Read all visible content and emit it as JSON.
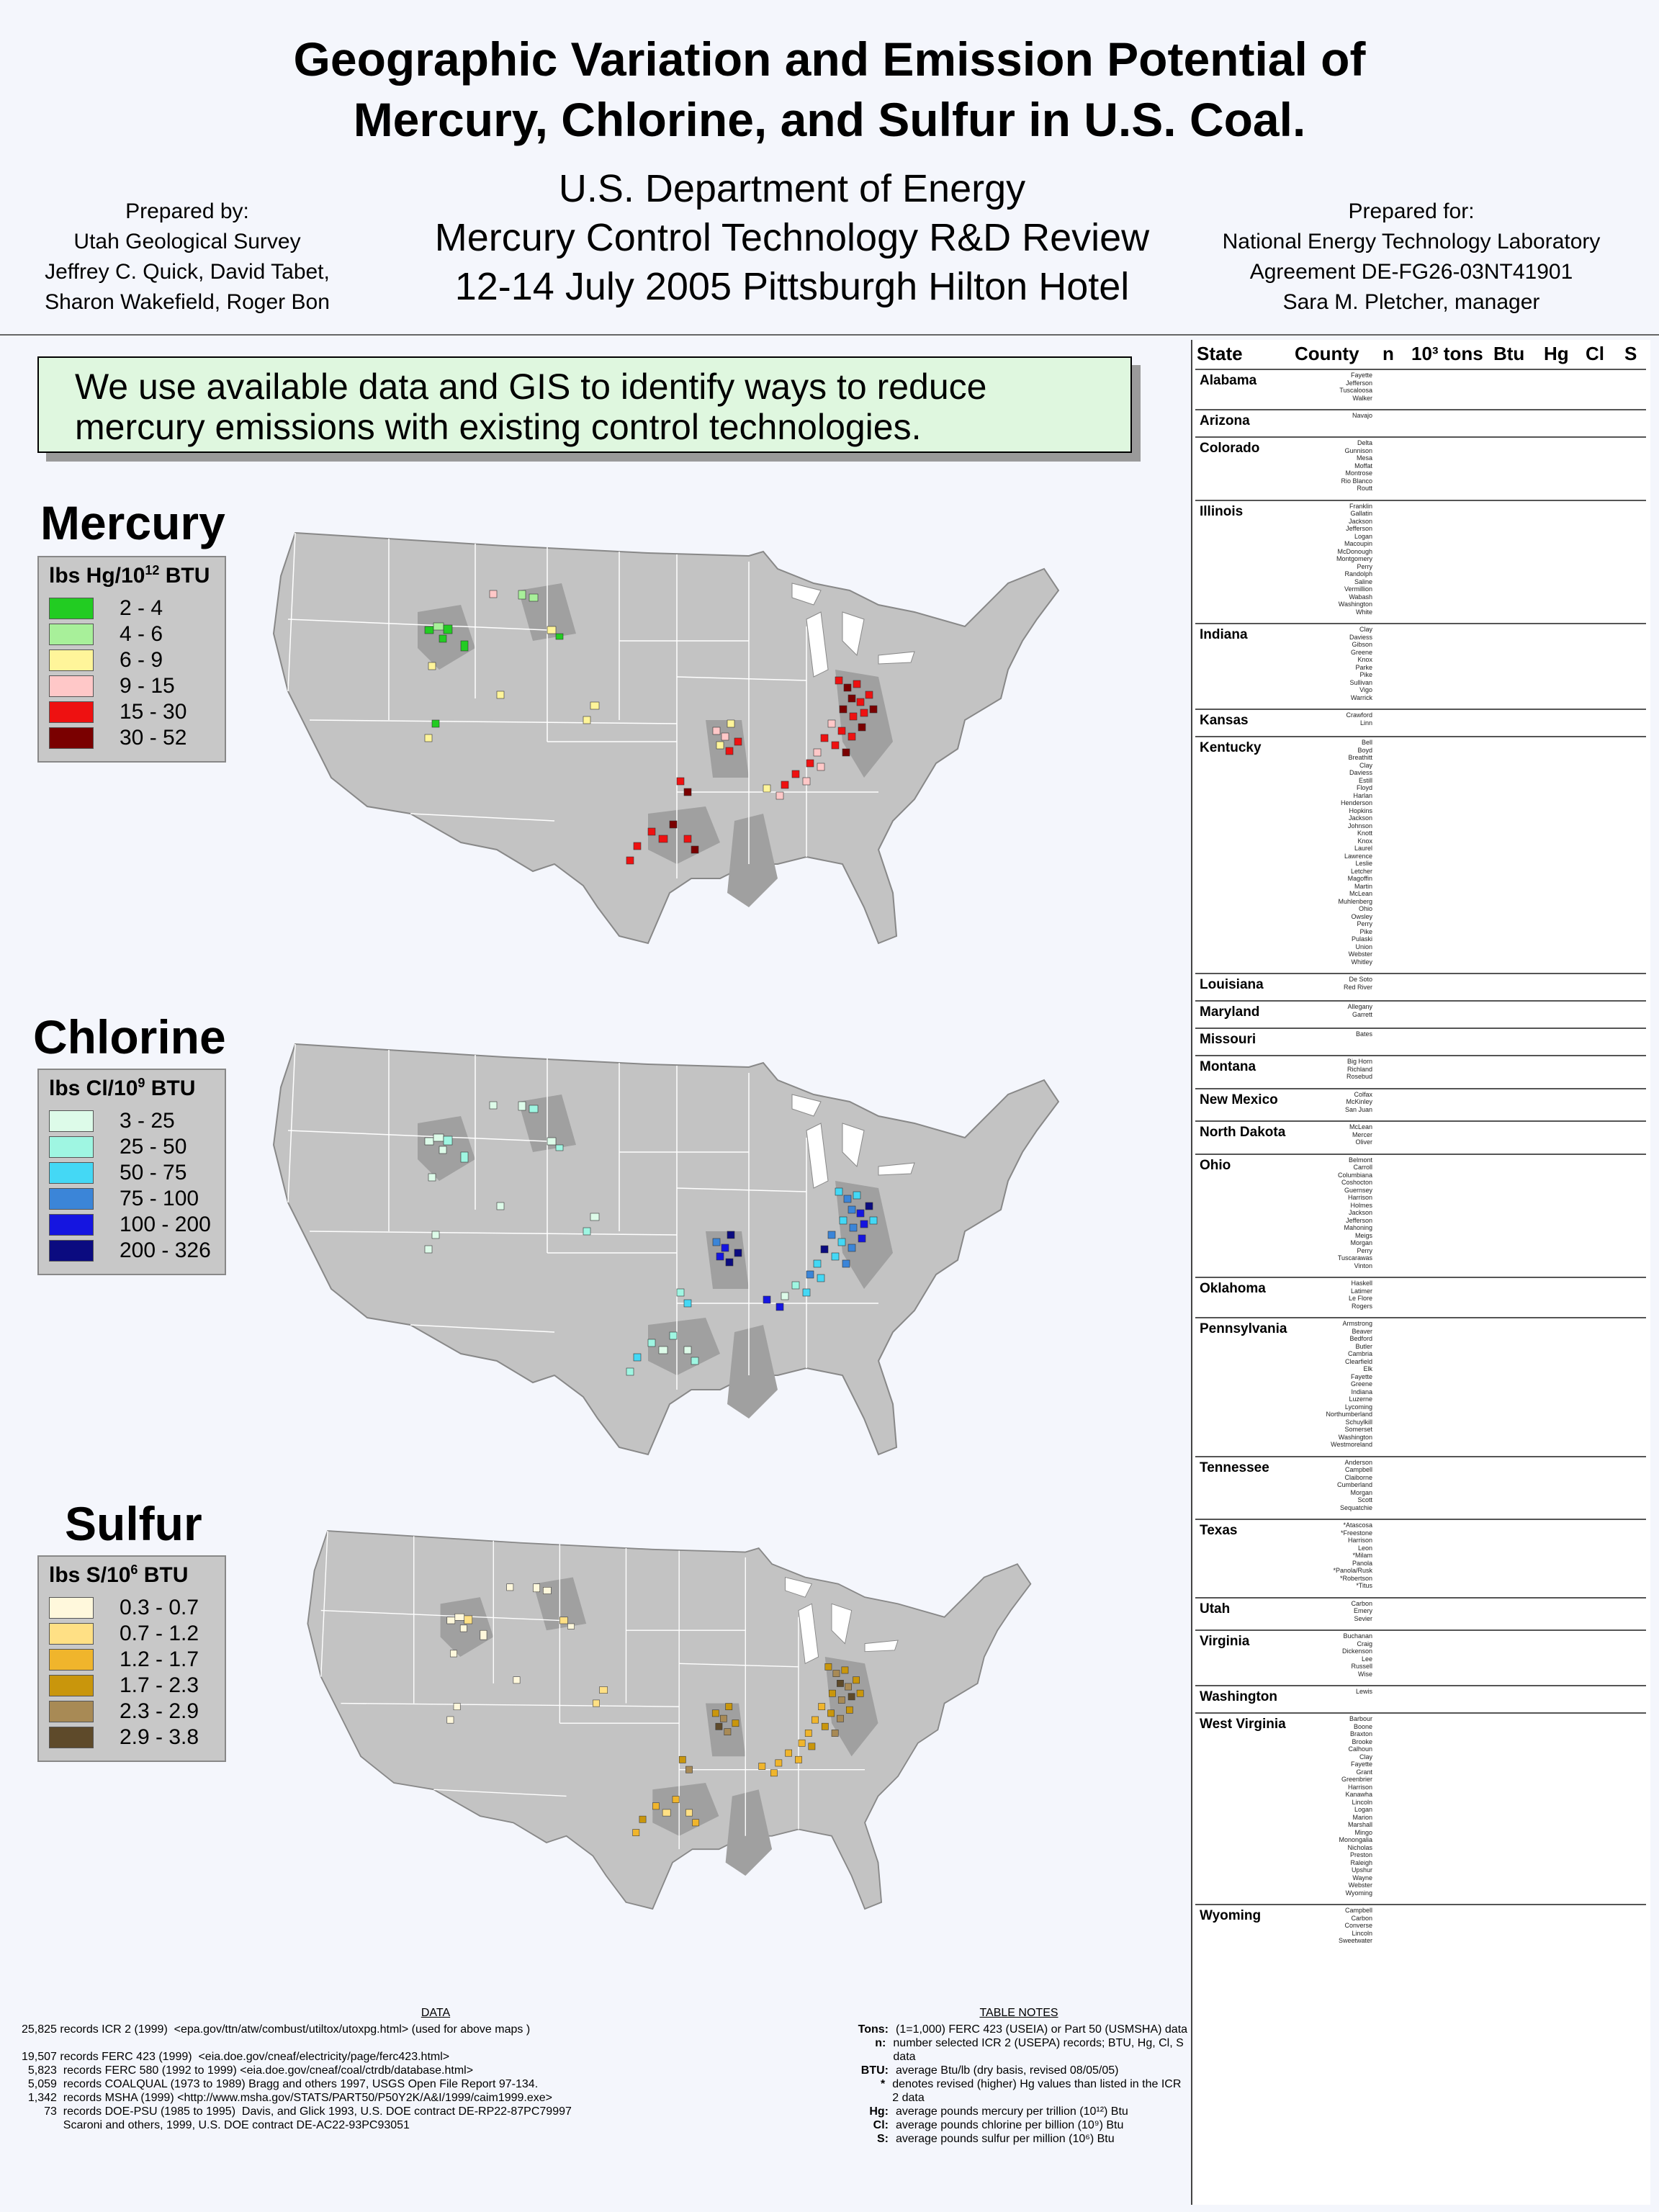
{
  "title": {
    "line1": "Geographic Variation and Emission Potential of",
    "line2": "Mercury, Chlorine, and Sulfur in U.S. Coal."
  },
  "subtitle": {
    "line1": "U.S. Department of Energy",
    "line2": "Mercury Control Technology R&D Review",
    "line3": "12-14 July 2005 Pittsburgh Hilton Hotel"
  },
  "prepared_by": {
    "label": "Prepared by:",
    "lines": [
      "Utah Geological Survey",
      "Jeffrey C. Quick, David Tabet,",
      "Sharon Wakefield, Roger Bon"
    ]
  },
  "prepared_for": {
    "label": "Prepared for:",
    "lines": [
      "National Energy Technology Laboratory",
      "Agreement DE-FG26-03NT41901",
      "Sara M. Pletcher,  manager"
    ]
  },
  "intro": {
    "line1": "We use available data and GIS to identify ways to reduce",
    "line2": "mercury emissions with existing control technologies."
  },
  "colors": {
    "land": "#c3c3c3",
    "coal_basin": "#a0a0a0",
    "state_border": "#ffffff"
  },
  "maps": [
    {
      "name": "Mercury",
      "legend_title": "lbs Hg/10",
      "legend_exp": "12",
      "legend_unit": " BTU",
      "classes": [
        {
          "label": "2 - 4",
          "color": "#22cc22"
        },
        {
          "label": "4 - 6",
          "color": "#a8f09a"
        },
        {
          "label": "6 - 9",
          "color": "#fff59a"
        },
        {
          "label": "9 - 15",
          "color": "#ffc8c8"
        },
        {
          "label": "15 - 30",
          "color": "#ee1111"
        },
        {
          "label": "30 - 52",
          "color": "#7a0000"
        }
      ]
    },
    {
      "name": "Chlorine",
      "legend_title": "lbs Cl/10",
      "legend_exp": "9",
      "legend_unit": " BTU",
      "classes": [
        {
          "label": "3 - 25",
          "color": "#ddfbe9"
        },
        {
          "label": "25 - 50",
          "color": "#9ff6e2"
        },
        {
          "label": "50 - 75",
          "color": "#44d8f5"
        },
        {
          "label": "75 - 100",
          "color": "#3b85d8"
        },
        {
          "label": "100 - 200",
          "color": "#1515e0"
        },
        {
          "label": "200 - 326",
          "color": "#0b0b80"
        }
      ]
    },
    {
      "name": "Sulfur",
      "legend_title": "lbs S/10",
      "legend_exp": "6",
      "legend_unit": " BTU",
      "classes": [
        {
          "label": "0.3 - 0.7",
          "color": "#fff8dc"
        },
        {
          "label": "0.7 - 1.2",
          "color": "#ffe085"
        },
        {
          "label": "1.2 - 1.7",
          "color": "#f0b52c"
        },
        {
          "label": "1.7 - 2.3",
          "color": "#c9960c"
        },
        {
          "label": "2.3 - 2.9",
          "color": "#a88a55"
        },
        {
          "label": "2.9 - 3.8",
          "color": "#5e4a2a"
        }
      ]
    }
  ],
  "table": {
    "headers": {
      "state": "State",
      "county": "County",
      "n": "n",
      "tons": "10³ tons",
      "btu": "Btu",
      "hg": "Hg",
      "cl": "Cl",
      "s": "S"
    },
    "states": [
      {
        "name": "Alabama",
        "counties": [
          "Fayette",
          "Jefferson",
          "Tuscaloosa",
          "Walker"
        ]
      },
      {
        "name": "Arizona",
        "counties": [
          "Navajo"
        ]
      },
      {
        "name": "Colorado",
        "counties": [
          "Delta",
          "Gunnison",
          "Mesa",
          "Moffat",
          "Montrose",
          "Rio Blanco",
          "Routt"
        ]
      },
      {
        "name": "Illinois",
        "counties": [
          "Franklin",
          "Gallatin",
          "Jackson",
          "Jefferson",
          "Logan",
          "Macoupin",
          "McDonough",
          "Montgomery",
          "Perry",
          "Randolph",
          "Saline",
          "Vermillion",
          "Wabash",
          "Washington",
          "White"
        ]
      },
      {
        "name": "Indiana",
        "counties": [
          "Clay",
          "Daviess",
          "Gibson",
          "Greene",
          "Knox",
          "Parke",
          "Pike",
          "Sullivan",
          "Vigo",
          "Warrick"
        ]
      },
      {
        "name": "Kansas",
        "counties": [
          "Crawford",
          "Linn"
        ]
      },
      {
        "name": "Kentucky",
        "counties": [
          "Bell",
          "Boyd",
          "Breathitt",
          "Clay",
          "Daviess",
          "Estill",
          "Floyd",
          "Harlan",
          "Henderson",
          "Hopkins",
          "Jackson",
          "Johnson",
          "Knott",
          "Knox",
          "Laurel",
          "Lawrence",
          "Leslie",
          "Letcher",
          "Magoffin",
          "Martin",
          "McLean",
          "Muhlenberg",
          "Ohio",
          "Owsley",
          "Perry",
          "Pike",
          "Pulaski",
          "Union",
          "Webster",
          "Whitley"
        ]
      },
      {
        "name": "Louisiana",
        "counties": [
          "De Soto",
          "Red River"
        ]
      },
      {
        "name": "Maryland",
        "counties": [
          "Allegany",
          "Garrett"
        ]
      },
      {
        "name": "Missouri",
        "counties": [
          "Bates"
        ]
      },
      {
        "name": "Montana",
        "counties": [
          "Big Horn",
          "Richland",
          "Rosebud"
        ]
      },
      {
        "name": "New Mexico",
        "counties": [
          "Colfax",
          "McKinley",
          "San Juan"
        ]
      },
      {
        "name": "North Dakota",
        "counties": [
          "McLean",
          "Mercer",
          "Oliver"
        ]
      },
      {
        "name": "Ohio",
        "counties": [
          "Belmont",
          "Carroll",
          "Columbiana",
          "Coshocton",
          "Guernsey",
          "Harrison",
          "Holmes",
          "Jackson",
          "Jefferson",
          "Mahoning",
          "Meigs",
          "Morgan",
          "Perry",
          "Tuscarawas",
          "Vinton"
        ]
      },
      {
        "name": "Oklahoma",
        "counties": [
          "Haskell",
          "Latimer",
          "Le Flore",
          "Rogers"
        ]
      },
      {
        "name": "Pennsylvania",
        "counties": [
          "Armstrong",
          "Beaver",
          "Bedford",
          "Butler",
          "Cambria",
          "Clearfield",
          "Elk",
          "Fayette",
          "Greene",
          "Indiana",
          "Luzerne",
          "Lycoming",
          "Northumberland",
          "Schuylkill",
          "Somerset",
          "Washington",
          "Westmoreland"
        ]
      },
      {
        "name": "Tennessee",
        "counties": [
          "Anderson",
          "Campbell",
          "Claiborne",
          "Cumberland",
          "Morgan",
          "Scott",
          "Sequatchie"
        ]
      },
      {
        "name": "Texas",
        "counties": [
          "*Atascosa",
          "*Freestone",
          "Harrison",
          "Leon",
          "*Milam",
          "Panola",
          "*Panola/Rusk",
          "*Robertson",
          "*Titus"
        ]
      },
      {
        "name": "Utah",
        "counties": [
          "Carbon",
          "Emery",
          "Sevier"
        ]
      },
      {
        "name": "Virginia",
        "counties": [
          "Buchanan",
          "Craig",
          "Dickenson",
          "Lee",
          "Russell",
          "Wise"
        ]
      },
      {
        "name": "Washington",
        "counties": [
          "Lewis"
        ]
      },
      {
        "name": "West Virginia",
        "counties": [
          "Barbour",
          "Boone",
          "Braxton",
          "Brooke",
          "Calhoun",
          "Clay",
          "Fayette",
          "Grant",
          "Greenbrier",
          "Harrison",
          "Kanawha",
          "Lincoln",
          "Logan",
          "Marion",
          "Marshall",
          "Mingo",
          "Monongalia",
          "Nicholas",
          "Preston",
          "Raleigh",
          "Upshur",
          "Wayne",
          "Webster",
          "Wyoming"
        ]
      },
      {
        "name": "Wyoming",
        "counties": [
          "Campbell",
          "Carbon",
          "Converse",
          "Lincoln",
          "Sweetwater"
        ]
      }
    ]
  },
  "data_section": {
    "header": "DATA",
    "lines": [
      "25,825 records ICR 2 (1999)  <epa.gov/ttn/atw/combust/utiltox/utoxpg.html> (used for above maps )",
      "",
      "19,507 records FERC 423 (1999)  <eia.doe.gov/cneaf/electricity/page/ferc423.html>",
      "  5,823  records FERC 580 (1992 to 1999) <eia.doe.gov/cneaf/coal/ctrdb/database.html>",
      "  5,059  records COALQUAL (1973 to 1989) Bragg and others 1997, USGS Open File Report 97-134.",
      "  1,342  records MSHA (1999) <http://www.msha.gov/STATS/PART50/P50Y2K/A&I/1999/caim1999.exe>",
      "       73  records DOE-PSU (1985 to 1995)  Davis, and Glick 1993, U.S. DOE contract DE-RP22-87PC79997",
      "             Scaroni and others, 1999, U.S. DOE contract DE-AC22-93PC93051"
    ]
  },
  "table_notes": {
    "header": "TABLE NOTES",
    "rows": [
      {
        "k": "Tons:",
        "v": "(1=1,000) FERC 423 (USEIA) or Part 50 (USMSHA) data"
      },
      {
        "k": "n:",
        "v": "number selected ICR 2 (USEPA) records; BTU, Hg, Cl, S data"
      },
      {
        "k": "BTU:",
        "v": "average Btu/lb (dry basis, revised 08/05/05)"
      },
      {
        "k": "*",
        "v": "denotes revised (higher) Hg values than listed in the ICR 2 data"
      },
      {
        "k": "Hg:",
        "v": "average pounds mercury per trillion (10¹²) Btu"
      },
      {
        "k": "Cl:",
        "v": "average pounds chlorine per billion (10⁹) Btu"
      },
      {
        "k": "S:",
        "v": "average pounds sulfur per million (10⁶) Btu"
      }
    ]
  }
}
